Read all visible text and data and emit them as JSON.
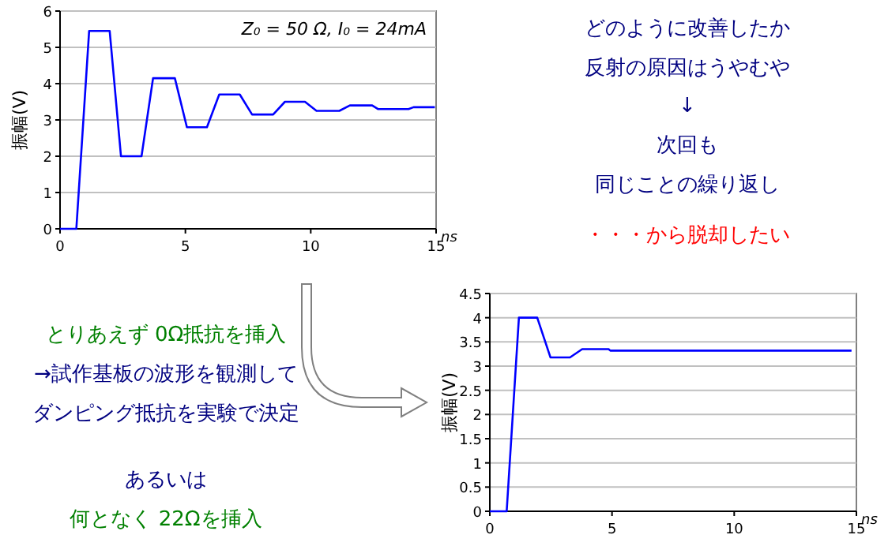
{
  "chart_data": [
    {
      "type": "line",
      "xlabel": "ns",
      "ylabel": "振幅(V)",
      "annotations": [
        "Z₀ = 50 Ω, I₀ = 24mA"
      ],
      "x": [
        0,
        0.65,
        1.16,
        1.98,
        2.43,
        3.25,
        3.71,
        4.58,
        5.06,
        5.86,
        6.35,
        7.17,
        7.66,
        8.5,
        8.97,
        9.77,
        10.23,
        11.14,
        11.56,
        12.45,
        12.68,
        13.9,
        14.1,
        14.95
      ],
      "series": [
        {
          "color": "#0000ff",
          "values": [
            0,
            0,
            5.45,
            5.45,
            2.0,
            2.0,
            4.15,
            4.15,
            2.8,
            2.8,
            3.7,
            3.7,
            3.15,
            3.15,
            3.5,
            3.5,
            3.25,
            3.25,
            3.4,
            3.4,
            3.3,
            3.3,
            3.35,
            3.35
          ]
        }
      ],
      "xlim": [
        0,
        15
      ],
      "xticks": [
        0,
        5,
        10,
        15
      ],
      "ylim": [
        0,
        6
      ],
      "yticks": [
        0,
        1,
        2,
        3,
        4,
        5,
        6
      ],
      "grid": "y",
      "marker": "none",
      "line_style": "solid"
    },
    {
      "type": "line",
      "xlabel": "ns",
      "ylabel": "振幅(V)",
      "x": [
        0,
        0.69,
        1.19,
        1.94,
        2.48,
        3.28,
        3.78,
        4.86,
        4.93,
        14.8
      ],
      "series": [
        {
          "color": "#0000ff",
          "values": [
            0,
            0,
            4.0,
            4.0,
            3.18,
            3.18,
            3.35,
            3.35,
            3.32,
            3.32
          ]
        }
      ],
      "xlim": [
        0,
        15
      ],
      "xticks": [
        0,
        5,
        10,
        15
      ],
      "ylim": [
        0,
        4.5
      ],
      "yticks": [
        0,
        0.5,
        1,
        1.5,
        2,
        2.5,
        3,
        3.5,
        4,
        4.5
      ],
      "grid": "y",
      "marker": "none",
      "line_style": "solid"
    },
    {
      "type": "other",
      "annotations": [
        "どのように改善したか",
        "反射の原因はうやむや",
        "↓",
        "次回も",
        "同じことの繰り返し",
        "・・・から脱却したい",
        "とりあえず 0Ω抵抗を挿入",
        "→試作基板の波形を観測して",
        "ダンピング抵抗を実験で決定",
        "あるいは",
        "何となく 22Ωを挿入"
      ],
      "colors": [
        "#000080",
        "#000080",
        "#000080",
        "#000080",
        "#000080",
        "#ff0000",
        "#008000",
        "#000080",
        "#000080",
        "#000080",
        "#008000"
      ]
    }
  ]
}
